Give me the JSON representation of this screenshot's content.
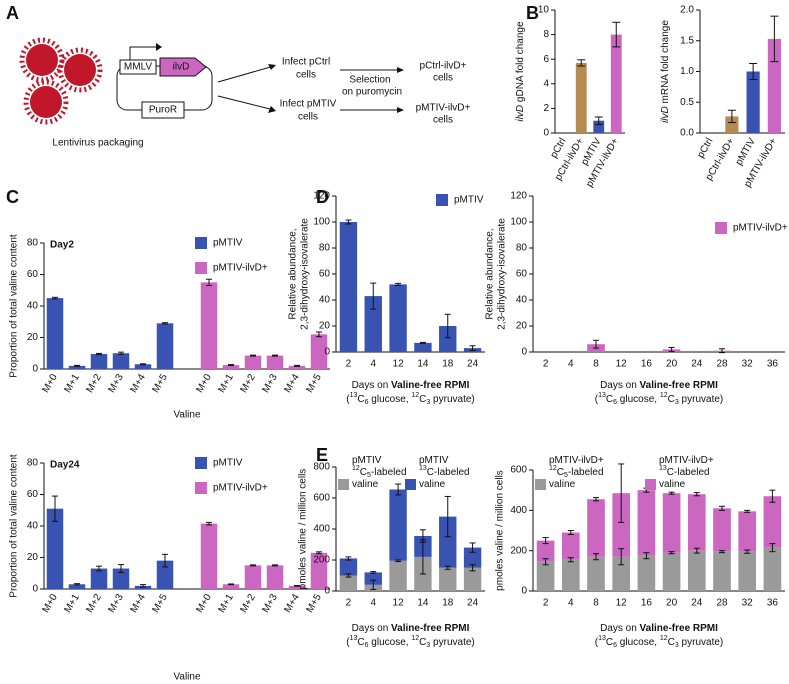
{
  "panel_labels": [
    "A",
    "B",
    "C",
    "D",
    "E"
  ],
  "diagram": {
    "promoter": "MMLV",
    "gene": "ilvD",
    "marker": "PuroR",
    "packaging": "Lentivirus packaging",
    "infect_ctrl": [
      "Infect pCtrl",
      "cells"
    ],
    "infect_mtiv": [
      "Infect pMTIV",
      "cells"
    ],
    "selection": [
      "Selection",
      "on puromycin"
    ],
    "result_ctrl": [
      "pCtrl-ilvD+",
      "cells"
    ],
    "result_mtiv": [
      "pMTIV-ilvD+",
      "cells"
    ]
  },
  "chart_data": [
    {
      "type": "bar",
      "y_label": [
        "ilvD",
        " gDNA fold change"
      ],
      "categories": [
        "pCtrl",
        "pCtrl-ilvD+",
        "pMTIV",
        "pMTIV-ilvD+"
      ],
      "values": [
        0,
        5.7,
        1.0,
        8.0
      ],
      "errors": [
        0,
        0.25,
        0.3,
        1.0
      ],
      "colors": [
        null,
        "#b68b53",
        "#3953b3",
        "#cc67c1"
      ],
      "ylim": [
        0,
        10
      ],
      "yticks": [
        0,
        2,
        4,
        6,
        8,
        10
      ]
    },
    {
      "type": "bar",
      "y_label": [
        "ilvD",
        " mRNA fold change"
      ],
      "categories": [
        "pCtrl",
        "pCtrl-ilvD+",
        "pMTIV",
        "pMTIV-ilvD+"
      ],
      "values": [
        0,
        0.27,
        1.0,
        1.53
      ],
      "errors": [
        0,
        0.1,
        0.13,
        0.37
      ],
      "colors": [
        null,
        "#b68b53",
        "#3953b3",
        "#cc67c1"
      ],
      "ylim": [
        0,
        2
      ],
      "yticks": [
        {
          "value": 0,
          "label": "0.0"
        },
        0.5,
        {
          "value": 1,
          "label": "1.0"
        },
        1.5,
        {
          "value": 2,
          "label": "2.0"
        }
      ]
    },
    {
      "type": "bar",
      "title": "Day2",
      "x_label": "Valine",
      "y_label": "Proportion of total valine content",
      "categories": [
        "M+0",
        "M+1",
        "M+2",
        "M+3",
        "M+4",
        "M+5"
      ],
      "series": [
        {
          "name": "pMTIV",
          "color": "#3953b3",
          "values": [
            45,
            2,
            9.5,
            10,
            3,
            29
          ],
          "errors": [
            0.5,
            0.3,
            0.4,
            0.7,
            0.3,
            0.4
          ]
        },
        {
          "name": "pMTIV-ilvD+",
          "color": "#cc67c1",
          "values": [
            55,
            2.5,
            8.5,
            8.5,
            2,
            22
          ],
          "errors": [
            2,
            0.3,
            0.3,
            0.3,
            0.3,
            1.5
          ]
        }
      ],
      "legend": "upper right",
      "ylim": [
        0,
        80
      ],
      "yticks": [
        0,
        20,
        40,
        60,
        80
      ]
    },
    {
      "type": "bar",
      "title": "Day24",
      "x_label": "Valine",
      "y_label": "Proportion of total valine content",
      "categories": [
        "M+0",
        "M+1",
        "M+2",
        "M+3",
        "M+4",
        "M+5"
      ],
      "series": [
        {
          "name": "pMTIV",
          "color": "#3953b3",
          "values": [
            51,
            3,
            13,
            13,
            2,
            18
          ],
          "errors": [
            8,
            0.4,
            1.5,
            2.5,
            0.8,
            4
          ]
        },
        {
          "name": "pMTIV-ilvD+",
          "color": "#cc67c1",
          "values": [
            41.5,
            3,
            15,
            15,
            2,
            23
          ],
          "errors": [
            0.8,
            0.2,
            0.3,
            0.3,
            0.2,
            0.6
          ]
        }
      ],
      "legend": "upper right",
      "ylim": [
        0,
        80
      ],
      "yticks": [
        0,
        20,
        40,
        60,
        80
      ]
    },
    {
      "type": "bar",
      "y_label": [
        "Relative abundance,",
        "2,3-dihydroxy-isovalerate"
      ],
      "x_label": [
        "Days on ",
        "Valine-free RPMI"
      ],
      "x_note": [
        "(",
        "13",
        "C",
        "6",
        " glucose, ",
        "12",
        "C",
        "3",
        " pyruvate)"
      ],
      "categories": [
        "2",
        "4",
        "12",
        "14",
        "18",
        "24"
      ],
      "series": [
        {
          "name": "pMTIV",
          "color": "#3953b3",
          "values": [
            100,
            43,
            52,
            7,
            20,
            3
          ],
          "errors": [
            1.5,
            10,
            0.8,
            0.4,
            9,
            1.8
          ]
        }
      ],
      "legend": "upper right",
      "ylim": [
        0,
        120
      ],
      "yticks": [
        0,
        20,
        40,
        60,
        80,
        100,
        120
      ]
    },
    {
      "type": "bar",
      "y_label": [
        "Relative abundance,",
        "2,3-dihydroxy-isovalerate"
      ],
      "x_label": [
        "Days on ",
        "Valine-free RPMI"
      ],
      "x_note": [
        "(",
        "13",
        "C",
        "6",
        " glucose, ",
        "12",
        "C",
        "3",
        " pyruvate)"
      ],
      "categories": [
        "2",
        "4",
        "8",
        "12",
        "16",
        "20",
        "24",
        "28",
        "32",
        "36"
      ],
      "series": [
        {
          "name": "pMTIV-ilvD+",
          "color": "#cc67c1",
          "values": [
            0,
            0,
            6,
            0,
            0,
            2,
            0,
            1,
            0,
            0
          ],
          "errors": [
            0,
            0,
            3,
            0,
            0,
            1.5,
            0,
            1.5,
            0,
            0
          ]
        }
      ],
      "legend": "upper right",
      "ylim": [
        0,
        120
      ],
      "yticks": [
        0,
        20,
        40,
        60,
        80,
        100,
        120
      ]
    },
    {
      "type": "stacked_bar",
      "y_label": "pmoles valine / million cells",
      "x_label": [
        "Days on ",
        "Valine-free RPMI"
      ],
      "x_note": [
        "(",
        "13",
        "C",
        "6",
        " glucose, ",
        "12",
        "C",
        "3",
        " pyruvate)"
      ],
      "categories": [
        "2",
        "4",
        "12",
        "14",
        "18",
        "24"
      ],
      "series": [
        {
          "name": [
            "pMTIV",
            "12",
            "C",
            "5",
            "-labeled",
            "valine"
          ],
          "color": "#9a9a9a",
          "values": [
            100,
            40,
            195,
            220,
            150,
            150
          ],
          "errors": [
            10,
            30,
            5,
            110,
            10,
            20
          ]
        },
        {
          "name": [
            "pMTIV",
            "13",
            "C-labeled",
            "valine"
          ],
          "color": "#3953b3",
          "values": [
            110,
            80,
            460,
            135,
            330,
            130
          ],
          "errors": [
            10,
            5,
            35,
            40,
            130,
            30
          ]
        }
      ],
      "legend": "upper left",
      "ylim": [
        0,
        800
      ],
      "yticks": [
        0,
        200,
        400,
        600,
        800
      ]
    },
    {
      "type": "stacked_bar",
      "y_label": "pmoles valine / million cells",
      "x_label": [
        "Days on ",
        "Valine-free RPMI"
      ],
      "x_note": [
        "(",
        "13",
        "C",
        "6",
        " glucose, ",
        "12",
        "C",
        "3",
        " pyruvate)"
      ],
      "categories": [
        "2",
        "4",
        "8",
        "12",
        "16",
        "20",
        "24",
        "28",
        "32",
        "36"
      ],
      "series": [
        {
          "name": [
            "pMTIV-ilvD+",
            "12",
            "C",
            "5",
            "-labeled",
            "valine"
          ],
          "color": "#9a9a9a",
          "values": [
            145,
            155,
            170,
            170,
            175,
            190,
            200,
            195,
            195,
            215
          ],
          "errors": [
            15,
            10,
            15,
            40,
            15,
            5,
            12,
            5,
            8,
            20
          ]
        },
        {
          "name": [
            "pMTIV-ilvD+",
            "13",
            "C-labeled",
            "valine"
          ],
          "color": "#cc67c1",
          "values": [
            105,
            135,
            285,
            315,
            325,
            295,
            280,
            215,
            200,
            255
          ],
          "errors": [
            15,
            10,
            8,
            145,
            10,
            5,
            8,
            10,
            5,
            30
          ]
        }
      ],
      "legend": "upper left",
      "ylim": [
        0,
        600
      ],
      "yticks": [
        0,
        200,
        400,
        600
      ]
    }
  ]
}
